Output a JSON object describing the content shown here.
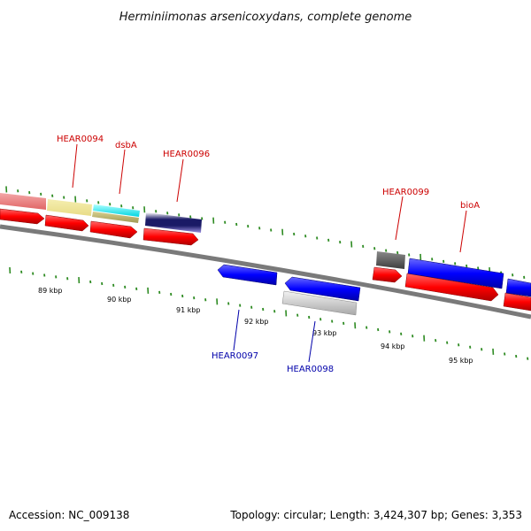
{
  "title": "Herminiimonas arsenicoxydans, complete genome",
  "footer": {
    "accession": "Accession: NC_009138",
    "summary": "Topology: circular; Length: 3,424,307 bp; Genes: 3,353"
  },
  "colors": {
    "background": "#ffffff",
    "axis": "#808080",
    "tick": "#2e8b22",
    "forward_label": "#cc0000",
    "reverse_label": "#0000aa",
    "gene_forward": "#ff0000",
    "gene_reverse": "#0000ff"
  },
  "scale": {
    "ticks": [
      "89 kbp",
      "90 kbp",
      "91 kbp",
      "92 kbp",
      "93 kbp",
      "94 kbp",
      "95 kbp"
    ]
  },
  "labels": {
    "HEAR0094": "HEAR0094",
    "dsbA": "dsbA",
    "HEAR0096": "HEAR0096",
    "HEAR0097": "HEAR0097",
    "HEAR0098": "HEAR0098",
    "HEAR0099": "HEAR0099",
    "bioA": "bioA"
  }
}
